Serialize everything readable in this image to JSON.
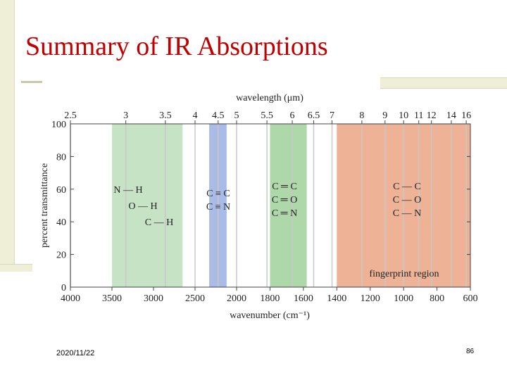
{
  "slide": {
    "title": "Summary of IR Absorptions",
    "date": "2020/11/22",
    "page_number": "86"
  },
  "colors": {
    "title": "#c00000",
    "green_band": "#c7e3c5",
    "dark_green_band": "#aed7aa",
    "blue_band": "#a9bbe6",
    "salmon_band": "#eeb296",
    "gridline": "#c8c8c8"
  },
  "chart_data": {
    "type": "area",
    "title": "",
    "top_axis_label": "wavelength (μm)",
    "xlabel": "wavenumber (cm⁻¹)",
    "ylabel": "percent transmittance",
    "xlim": [
      4000,
      600
    ],
    "ylim": [
      0,
      100
    ],
    "wavenumber_ticks": [
      4000,
      3500,
      3000,
      2500,
      2000,
      1800,
      1600,
      1400,
      1200,
      1000,
      800,
      600
    ],
    "wavelength_ticks": [
      "2.5",
      "3",
      "3.5",
      "4",
      "4.5",
      "5",
      "5.5",
      "6",
      "6.5",
      "7",
      "8",
      "9",
      "10",
      "11",
      "12",
      "14",
      "16"
    ],
    "wavelength_values": [
      2.5,
      3,
      3.5,
      4,
      4.5,
      5,
      5.5,
      6,
      6.5,
      7,
      8,
      9,
      10,
      11,
      12,
      14,
      16
    ],
    "y_ticks": [
      0,
      20,
      40,
      60,
      80,
      100
    ],
    "grid": true,
    "bands": [
      {
        "from": 3500,
        "to": 2650,
        "color": "#c7e3c5",
        "labels": [
          "N — H",
          "O — H",
          "C — H"
        ]
      },
      {
        "from": 2330,
        "to": 2120,
        "color": "#a9bbe6",
        "labels": [
          "C ≡ C",
          "C ≡ N"
        ]
      },
      {
        "from": 1800,
        "to": 1580,
        "color": "#aed7aa",
        "labels": [
          "C ═ C",
          "C ═ O",
          "C ═ N"
        ]
      },
      {
        "from": 1400,
        "to": 600,
        "color": "#eeb296",
        "labels": [
          "C — C",
          "C — O",
          "C — N"
        ]
      }
    ],
    "annotations": [
      "fingerprint region"
    ]
  }
}
